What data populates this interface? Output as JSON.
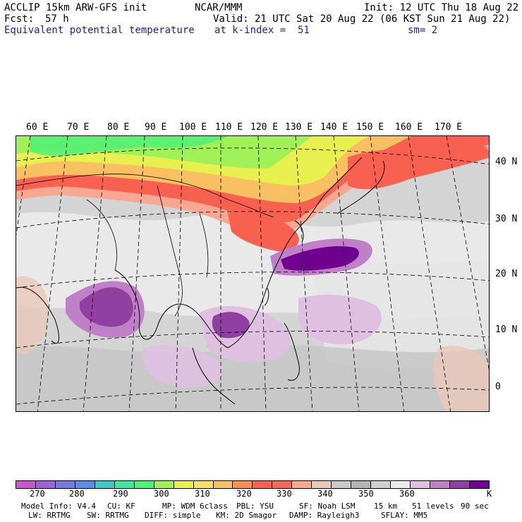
{
  "header": {
    "line1_left": "ACCLIP 15km ARW-GFS init",
    "line1_mid": "NCAR/MMM",
    "line1_right": "Init: 12 UTC Thu 18 Aug 22",
    "fcst_label": "Fcst:",
    "fcst_value": "57 h",
    "valid": "Valid: 21 UTC Sat 20 Aug 22 (06 KST Sun 21 Aug 22)",
    "field": "Equivalent potential temperature",
    "level": "at k-index =  51",
    "smooth": "sm= 2"
  },
  "map": {
    "lon_labels": [
      "60 E",
      "70 E",
      "80 E",
      "90 E",
      "100 E",
      "110 E",
      "120 E",
      "130 E",
      "140 E",
      "150 E",
      "160 E",
      "170 E"
    ],
    "lat_labels": [
      "40 N",
      "30 N",
      "20 N",
      "10 N",
      "0"
    ]
  },
  "colorbar": {
    "colors": [
      "#c857c8",
      "#a060d8",
      "#7878e0",
      "#5a8ce8",
      "#3cc8c8",
      "#3ce8a0",
      "#50f078",
      "#a0f058",
      "#e8f050",
      "#f8e060",
      "#f8c060",
      "#f89050",
      "#f86050",
      "#f86858",
      "#f8a890",
      "#e8c8b8",
      "#c8c8c8",
      "#b4b4b4",
      "#cfcfcf",
      "#ececec",
      "#e0c0e0",
      "#c080c8",
      "#9040a0",
      "#700090"
    ],
    "labels": [
      "270",
      "280",
      "290",
      "300",
      "310",
      "320",
      "330",
      "340",
      "350",
      "360",
      "K"
    ],
    "unit": "K"
  },
  "footer": {
    "line1": [
      "Model Info: V4.4",
      "CU: KF",
      "MP: WDM 6class",
      "PBL: YSU",
      "SF: Noah LSM",
      "15 km",
      "51 levels",
      "90 sec"
    ],
    "line2": [
      "LW: RRTMG",
      "SW: RRTMG",
      "DIFF: simple",
      "KM: 2D Smagor",
      "DAMP: Rayleigh3",
      "SFLAY: MM5"
    ]
  }
}
